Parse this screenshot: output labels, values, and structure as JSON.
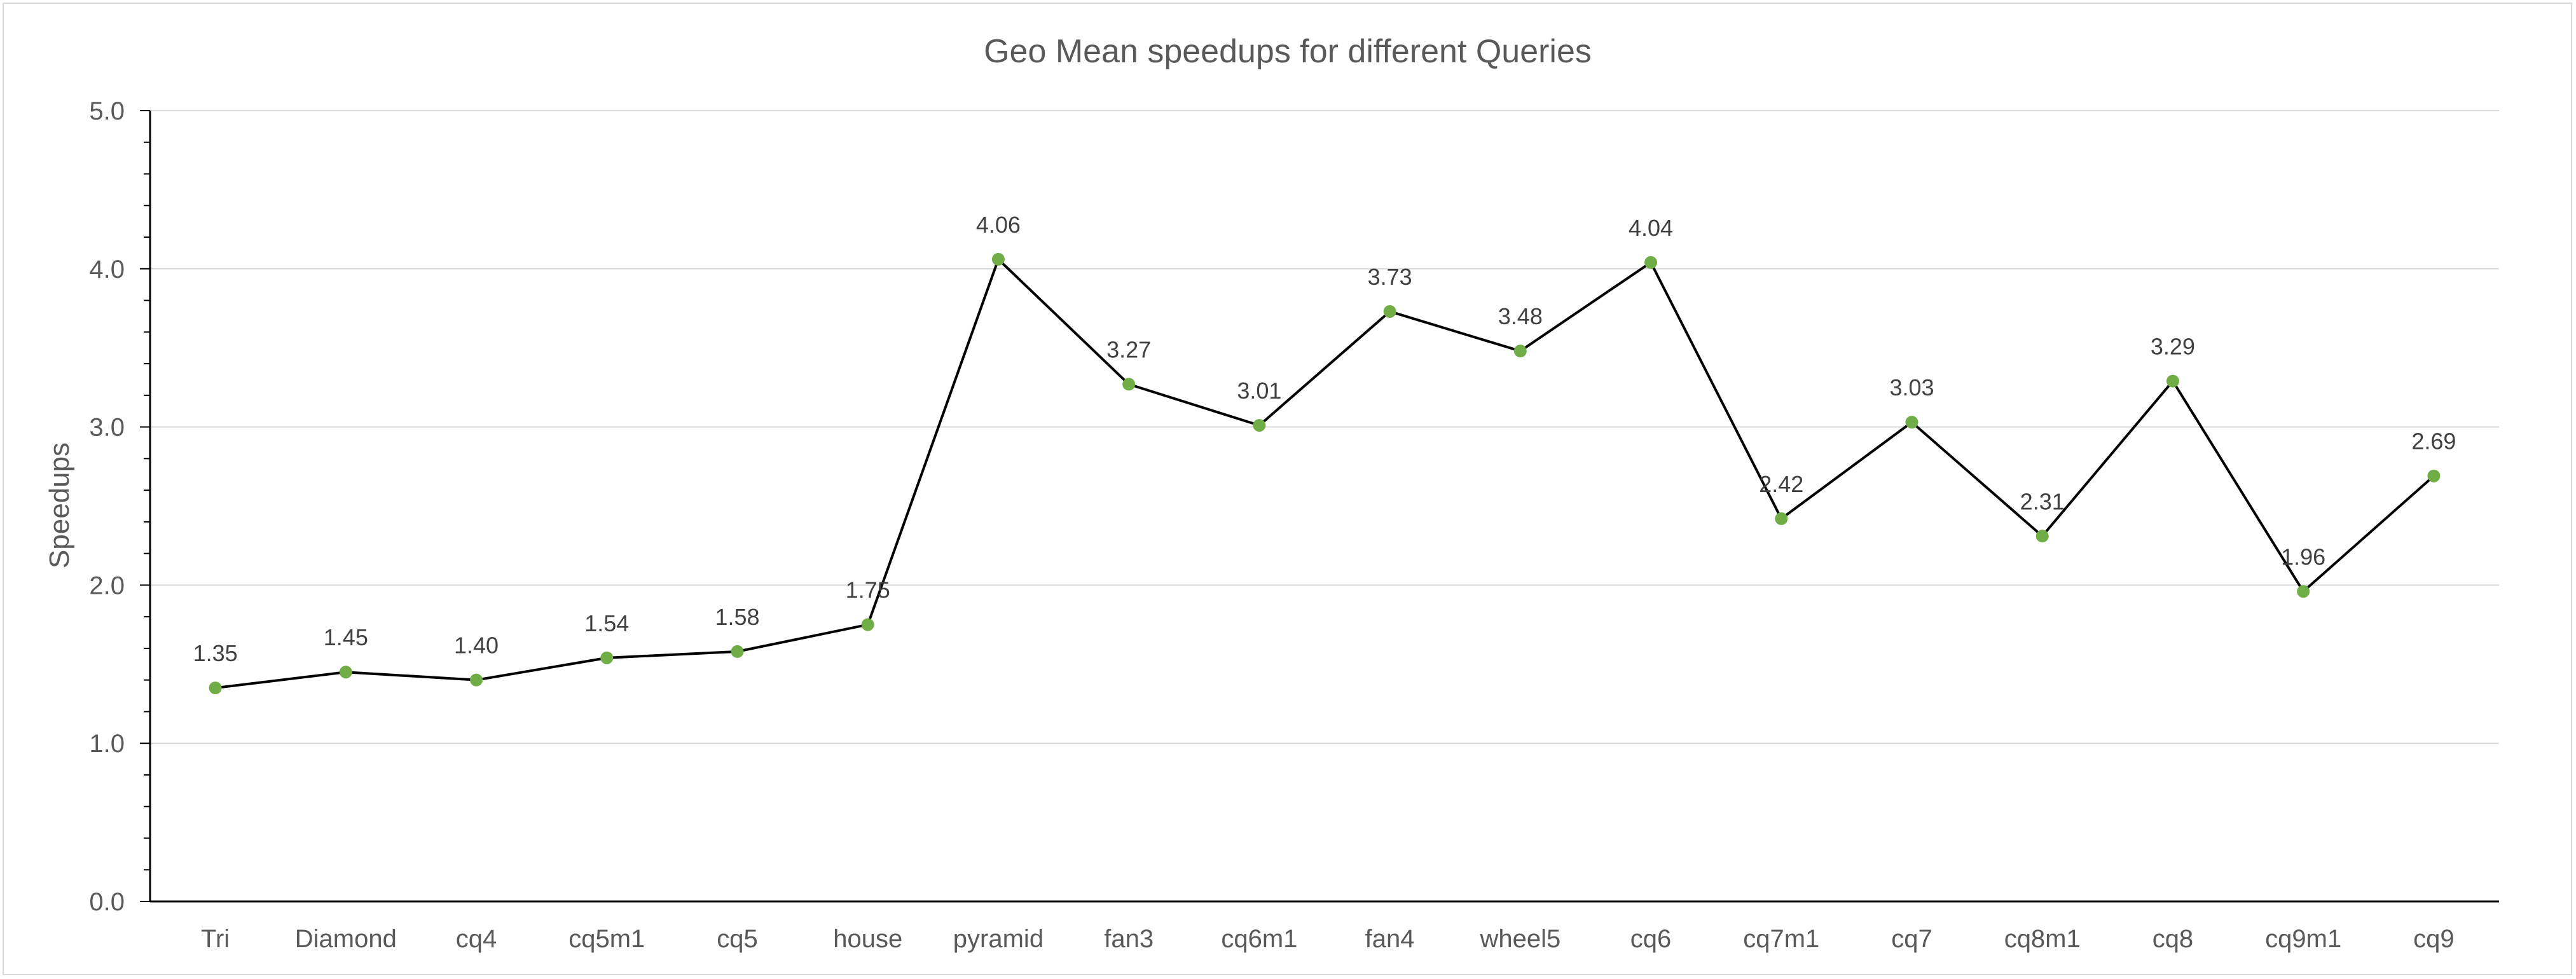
{
  "chart_data": {
    "type": "line",
    "title": "Geo Mean speedups for different Queries",
    "xlabel": "",
    "ylabel": "Speedups",
    "ylim": [
      0,
      5
    ],
    "y_ticks": [
      "0.0",
      "1.0",
      "2.0",
      "3.0",
      "4.0",
      "5.0"
    ],
    "grid": true,
    "legend": "none",
    "categories": [
      "Tri",
      "Diamond",
      "cq4",
      "cq5m1",
      "cq5",
      "house",
      "pyramid",
      "fan3",
      "cq6m1",
      "fan4",
      "wheel5",
      "cq6",
      "cq7m1",
      "cq7",
      "cq8m1",
      "cq8",
      "cq9m1",
      "cq9"
    ],
    "values": [
      1.35,
      1.45,
      1.4,
      1.54,
      1.58,
      1.75,
      4.06,
      3.27,
      3.01,
      3.73,
      3.48,
      4.04,
      2.42,
      3.03,
      2.31,
      3.29,
      1.96,
      2.69
    ],
    "data_labels": [
      "1.35",
      "1.45",
      "1.40",
      "1.54",
      "1.58",
      "1.75",
      "4.06",
      "3.27",
      "3.01",
      "3.73",
      "3.48",
      "4.04",
      "2.42",
      "3.03",
      "2.31",
      "3.29",
      "1.96",
      "2.69"
    ],
    "colors": {
      "line": "#000000",
      "marker": "#70ad47",
      "grid": "#d9d9d9",
      "axis": "#000000",
      "text": "#595959"
    }
  }
}
